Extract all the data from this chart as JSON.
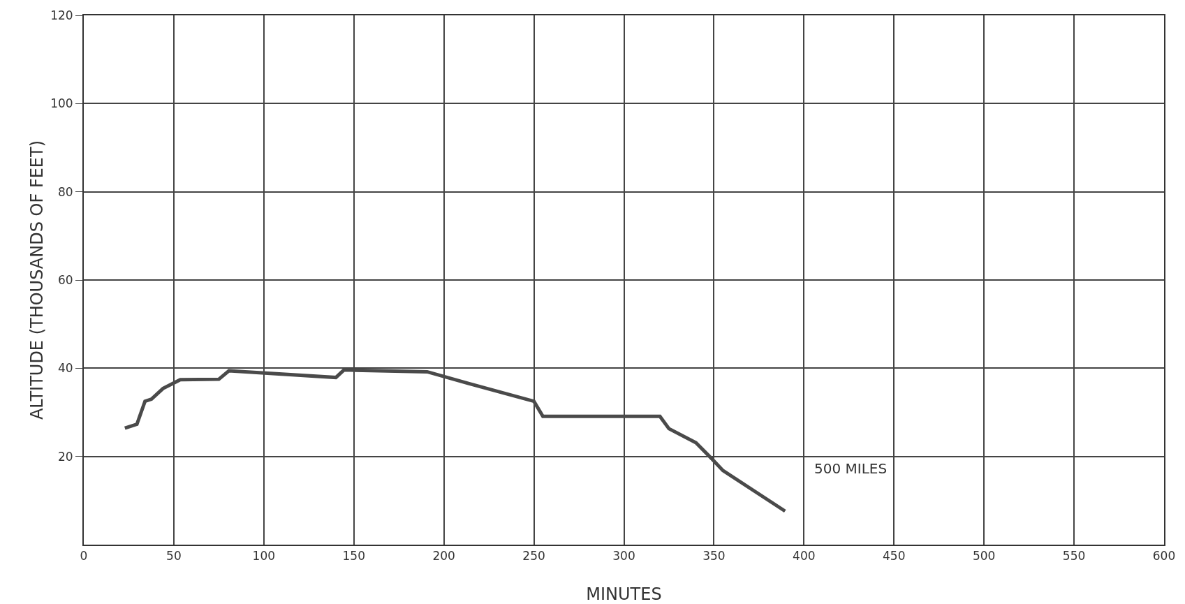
{
  "chart_data": {
    "type": "line",
    "xlabel": "MINUTES",
    "ylabel": "ALTITUDE (THOUSANDS OF FEET)",
    "x": [
      22.8,
      29.5,
      34,
      37.6,
      44,
      53.6,
      75,
      80.6,
      140,
      144.5,
      190.7,
      214,
      250,
      255,
      320,
      325,
      340,
      349,
      355,
      389.5
    ],
    "series": [
      {
        "color": "#4a4a4a",
        "values": [
          26.4,
          27.3,
          32.5,
          33,
          35.4,
          37.4,
          37.5,
          39.4,
          37.9,
          39.6,
          39.2,
          36.5,
          32.5,
          29.1,
          29.1,
          26.3,
          23.1,
          19.4,
          16.8,
          7.6
        ]
      }
    ],
    "annotations": [
      "500 MILES"
    ],
    "xlim": [
      0,
      600
    ],
    "xticks": [
      0,
      50,
      100,
      150,
      200,
      250,
      300,
      350,
      400,
      450,
      500,
      550,
      600
    ],
    "ylim": [
      0,
      120
    ],
    "yticks": [
      20,
      40,
      60,
      80,
      100,
      120
    ],
    "grid": true,
    "marker": "none",
    "line_style": "solid"
  }
}
